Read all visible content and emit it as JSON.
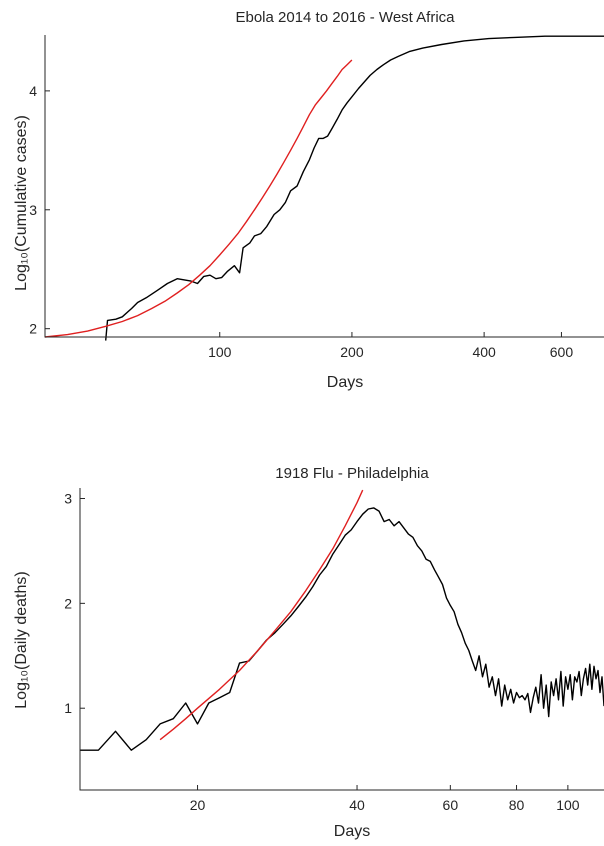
{
  "chart_data": [
    {
      "type": "line",
      "title": "Ebola 2014 to 2016 - West Africa",
      "xlabel": "Days",
      "ylabel": "Log₁₀(Cumulative cases)",
      "x_scale": "log",
      "xlim": [
        40,
        750
      ],
      "ylim": [
        1.93,
        4.47
      ],
      "x_ticks": [
        100,
        200,
        400,
        600
      ],
      "x_tick_labels": [
        "100",
        "200",
        "400",
        "600"
      ],
      "y_ticks": [
        2,
        3,
        4
      ],
      "y_tick_labels": [
        "2",
        "3",
        "4"
      ],
      "series": [
        {
          "color": "#000000",
          "points": [
            [
              55,
              1.9
            ],
            [
              55.5,
              2.07
            ],
            [
              58,
              2.08
            ],
            [
              60,
              2.1
            ],
            [
              63,
              2.17
            ],
            [
              65,
              2.22
            ],
            [
              68,
              2.26
            ],
            [
              72,
              2.32
            ],
            [
              76,
              2.38
            ],
            [
              80,
              2.42
            ],
            [
              86,
              2.4
            ],
            [
              89,
              2.38
            ],
            [
              92,
              2.44
            ],
            [
              95,
              2.45
            ],
            [
              98,
              2.42
            ],
            [
              101,
              2.43
            ],
            [
              104,
              2.48
            ],
            [
              108,
              2.53
            ],
            [
              111,
              2.47
            ],
            [
              113,
              2.68
            ],
            [
              117,
              2.72
            ],
            [
              120,
              2.78
            ],
            [
              124,
              2.8
            ],
            [
              128,
              2.86
            ],
            [
              133,
              2.96
            ],
            [
              137,
              3.0
            ],
            [
              141,
              3.06
            ],
            [
              145,
              3.16
            ],
            [
              150,
              3.2
            ],
            [
              155,
              3.32
            ],
            [
              160,
              3.42
            ],
            [
              164,
              3.52
            ],
            [
              168,
              3.6
            ],
            [
              172,
              3.6
            ],
            [
              176,
              3.62
            ],
            [
              180,
              3.68
            ],
            [
              185,
              3.76
            ],
            [
              190,
              3.84
            ],
            [
              195,
              3.9
            ],
            [
              200,
              3.95
            ],
            [
              207,
              4.02
            ],
            [
              214,
              4.08
            ],
            [
              220,
              4.13
            ],
            [
              228,
              4.18
            ],
            [
              236,
              4.22
            ],
            [
              245,
              4.26
            ],
            [
              255,
              4.29
            ],
            [
              270,
              4.33
            ],
            [
              290,
              4.36
            ],
            [
              320,
              4.39
            ],
            [
              360,
              4.42
            ],
            [
              410,
              4.44
            ],
            [
              470,
              4.45
            ],
            [
              550,
              4.46
            ],
            [
              650,
              4.46
            ],
            [
              750,
              4.46
            ]
          ]
        },
        {
          "color": "#e02020",
          "points": [
            [
              40,
              1.93
            ],
            [
              45,
              1.95
            ],
            [
              50,
              1.98
            ],
            [
              55,
              2.02
            ],
            [
              60,
              2.06
            ],
            [
              65,
              2.11
            ],
            [
              70,
              2.17
            ],
            [
              75,
              2.23
            ],
            [
              80,
              2.3
            ],
            [
              85,
              2.37
            ],
            [
              90,
              2.45
            ],
            [
              95,
              2.53
            ],
            [
              100,
              2.62
            ],
            [
              105,
              2.71
            ],
            [
              110,
              2.8
            ],
            [
              115,
              2.9
            ],
            [
              120,
              3.0
            ],
            [
              125,
              3.1
            ],
            [
              130,
              3.2
            ],
            [
              135,
              3.3
            ],
            [
              140,
              3.4
            ],
            [
              145,
              3.5
            ],
            [
              150,
              3.6
            ],
            [
              155,
              3.7
            ],
            [
              160,
              3.8
            ],
            [
              165,
              3.88
            ],
            [
              170,
              3.94
            ],
            [
              175,
              4.0
            ],
            [
              180,
              4.06
            ],
            [
              185,
              4.12
            ],
            [
              190,
              4.18
            ],
            [
              195,
              4.22
            ],
            [
              200,
              4.26
            ]
          ]
        }
      ],
      "grid": false,
      "legend": "none"
    },
    {
      "type": "line",
      "title": "1918 Flu - Philadelphia",
      "xlabel": "Days",
      "ylabel": "Log₁₀(Daily deaths)",
      "x_scale": "log",
      "xlim": [
        12,
        117
      ],
      "ylim": [
        0.22,
        3.1
      ],
      "x_ticks": [
        20,
        40,
        60,
        80,
        100
      ],
      "x_tick_labels": [
        "20",
        "40",
        "60",
        "80",
        "100"
      ],
      "y_ticks": [
        1,
        2,
        3
      ],
      "y_tick_labels": [
        "1",
        "2",
        "3"
      ],
      "series": [
        {
          "color": "#000000",
          "points": [
            [
              12,
              0.6
            ],
            [
              13,
              0.6
            ],
            [
              14,
              0.78
            ],
            [
              15,
              0.6
            ],
            [
              16,
              0.7
            ],
            [
              17,
              0.85
            ],
            [
              18,
              0.9
            ],
            [
              19,
              1.05
            ],
            [
              20,
              0.85
            ],
            [
              21,
              1.05
            ],
            [
              22,
              1.1
            ],
            [
              23,
              1.15
            ],
            [
              24,
              1.43
            ],
            [
              25,
              1.45
            ],
            [
              26,
              1.55
            ],
            [
              27,
              1.65
            ],
            [
              28,
              1.72
            ],
            [
              29,
              1.8
            ],
            [
              30,
              1.88
            ],
            [
              31,
              1.97
            ],
            [
              32,
              2.06
            ],
            [
              33,
              2.16
            ],
            [
              34,
              2.27
            ],
            [
              35,
              2.35
            ],
            [
              36,
              2.47
            ],
            [
              37,
              2.56
            ],
            [
              38,
              2.65
            ],
            [
              39,
              2.7
            ],
            [
              40,
              2.78
            ],
            [
              41,
              2.85
            ],
            [
              42,
              2.9
            ],
            [
              43,
              2.91
            ],
            [
              44,
              2.88
            ],
            [
              45,
              2.78
            ],
            [
              46,
              2.8
            ],
            [
              47,
              2.74
            ],
            [
              48,
              2.78
            ],
            [
              49,
              2.72
            ],
            [
              50,
              2.66
            ],
            [
              51,
              2.63
            ],
            [
              52,
              2.55
            ],
            [
              53,
              2.5
            ],
            [
              54,
              2.42
            ],
            [
              55,
              2.4
            ],
            [
              56,
              2.32
            ],
            [
              57,
              2.25
            ],
            [
              58,
              2.18
            ],
            [
              59,
              2.05
            ],
            [
              60,
              1.98
            ],
            [
              61,
              1.92
            ],
            [
              62,
              1.8
            ],
            [
              63,
              1.72
            ],
            [
              64,
              1.62
            ],
            [
              65,
              1.55
            ],
            [
              66,
              1.45
            ],
            [
              67,
              1.36
            ],
            [
              68,
              1.5
            ],
            [
              69,
              1.3
            ],
            [
              70,
              1.42
            ],
            [
              71,
              1.2
            ],
            [
              72,
              1.3
            ],
            [
              73,
              1.12
            ],
            [
              74,
              1.28
            ],
            [
              75,
              1.02
            ],
            [
              76,
              1.22
            ],
            [
              77,
              1.08
            ],
            [
              78,
              1.18
            ],
            [
              79,
              1.05
            ],
            [
              80,
              1.15
            ],
            [
              81,
              1.1
            ],
            [
              82,
              1.12
            ],
            [
              83,
              1.08
            ],
            [
              84,
              1.14
            ],
            [
              85,
              0.96
            ],
            [
              86,
              1.1
            ],
            [
              87,
              1.2
            ],
            [
              88,
              1.05
            ],
            [
              89,
              1.32
            ],
            [
              90,
              1.0
            ],
            [
              91,
              1.22
            ],
            [
              92,
              0.92
            ],
            [
              93,
              1.25
            ],
            [
              94,
              1.12
            ],
            [
              95,
              1.28
            ],
            [
              96,
              1.08
            ],
            [
              97,
              1.35
            ],
            [
              98,
              1.02
            ],
            [
              99,
              1.3
            ],
            [
              100,
              1.18
            ],
            [
              101,
              1.32
            ],
            [
              102,
              1.08
            ],
            [
              103,
              1.3
            ],
            [
              104,
              1.25
            ],
            [
              105,
              1.35
            ],
            [
              106,
              1.12
            ],
            [
              107,
              1.28
            ],
            [
              108,
              1.38
            ],
            [
              109,
              1.22
            ],
            [
              110,
              1.42
            ],
            [
              111,
              1.18
            ],
            [
              112,
              1.4
            ],
            [
              113,
              1.28
            ],
            [
              114,
              1.36
            ],
            [
              115,
              1.15
            ],
            [
              116,
              1.3
            ],
            [
              117,
              1.02
            ]
          ]
        },
        {
          "color": "#e02020",
          "points": [
            [
              17,
              0.7
            ],
            [
              18,
              0.8
            ],
            [
              19,
              0.9
            ],
            [
              20,
              1.0
            ],
            [
              22,
              1.18
            ],
            [
              24,
              1.36
            ],
            [
              26,
              1.55
            ],
            [
              28,
              1.74
            ],
            [
              30,
              1.92
            ],
            [
              32,
              2.12
            ],
            [
              34,
              2.32
            ],
            [
              36,
              2.52
            ],
            [
              38,
              2.74
            ],
            [
              40,
              2.96
            ],
            [
              41,
              3.08
            ]
          ]
        }
      ],
      "grid": false,
      "legend": "none"
    }
  ]
}
